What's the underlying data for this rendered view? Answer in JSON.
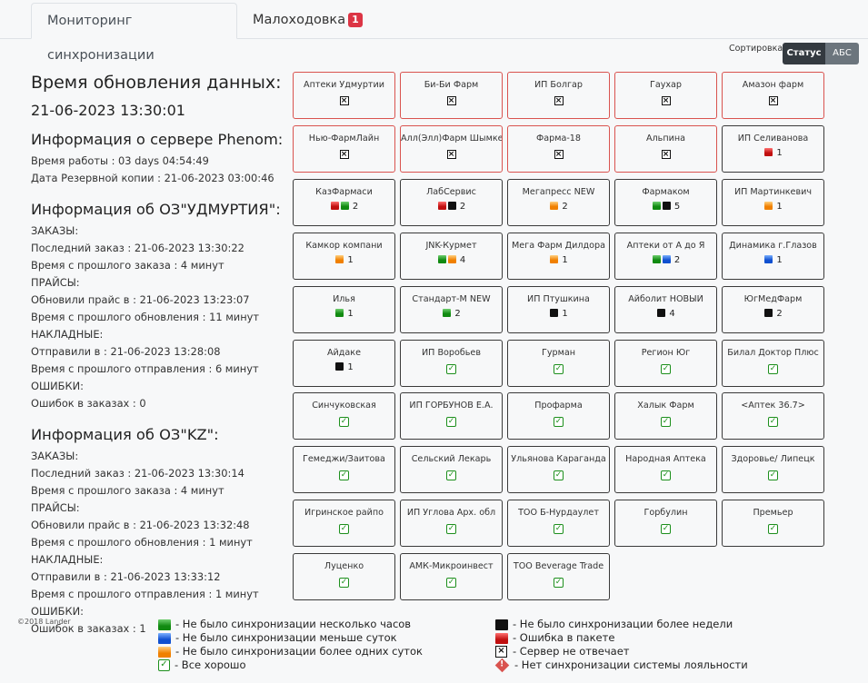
{
  "tabs": [
    {
      "label": "Мониторинг синхронизации",
      "active": true
    },
    {
      "label": "Малоходовка",
      "badge": "1"
    }
  ],
  "sort": {
    "label": "Сортировка:",
    "options": [
      "Статус",
      "АБС"
    ],
    "selected": "Статус"
  },
  "info": {
    "update_title": "Время обновления данных:",
    "update_time": "21-06-2023 13:30:01",
    "server": {
      "title": "Информация о сервере Phenom:",
      "uptime": "Время работы : 03 days 04:54:49",
      "backup": "Дата Резервной копии : 21-06-2023 03:00:46"
    },
    "oz1": {
      "title": "Информация об ОЗ\"УДМУРТИЯ\":",
      "lines": [
        "ЗАКАЗЫ:",
        "Последний заказ : 21-06-2023 13:30:22",
        "Время с прошлого заказа : 4 минут",
        "ПРАЙСЫ:",
        "Обновили прайс в : 21-06-2023 13:23:07",
        "Время с прошлого обновления : 11 минут",
        "НАКЛАДНЫЕ:",
        "Отправили в : 21-06-2023 13:28:08",
        "Время с прошлого отправления : 6 минут",
        "ОШИБКИ:",
        "Ошибок в заказах : 0"
      ]
    },
    "oz2": {
      "title": "Информация об ОЗ\"KZ\":",
      "lines": [
        "ЗАКАЗЫ:",
        "Последний заказ : 21-06-2023 13:30:14",
        "Время с прошлого заказа : 4 минут",
        "ПРАЙСЫ:",
        "Обновили прайс в : 21-06-2023 13:32:48",
        "Время с прошлого обновления : 1 минут",
        "НАКЛАДНЫЕ:",
        "Отправили в : 21-06-2023 13:33:12",
        "Время с прошлого отправления : 1 минут",
        "ОШИБКИ:",
        "Ошибок в заказах : 1"
      ]
    }
  },
  "cards": [
    {
      "name": "Аптеки Удмуртии",
      "status": "x",
      "border": "red"
    },
    {
      "name": "Би-Би Фарм",
      "status": "x",
      "border": "red"
    },
    {
      "name": "ИП Болгар",
      "status": "x",
      "border": "red"
    },
    {
      "name": "Гаухар",
      "status": "x",
      "border": "red"
    },
    {
      "name": "Амазон фарм",
      "status": "x",
      "border": "red"
    },
    {
      "name": "Нью-ФармЛайн",
      "status": "x",
      "border": "red"
    },
    {
      "name": "Алл(Элл)Фарм Шымкент",
      "status": "x",
      "border": "red"
    },
    {
      "name": "Фарма-18",
      "status": "x",
      "border": "red"
    },
    {
      "name": "Альпина",
      "status": "x",
      "border": "red"
    },
    {
      "name": "ИП Селиванова",
      "status": "marks",
      "marks": [
        "red"
      ],
      "count": "1"
    },
    {
      "name": "КазФармаси",
      "status": "marks",
      "marks": [
        "red",
        "green"
      ],
      "count": "2"
    },
    {
      "name": "ЛабСервис",
      "status": "marks",
      "marks": [
        "red",
        "black"
      ],
      "count": "2"
    },
    {
      "name": "Мегапресс NEW",
      "status": "marks",
      "marks": [
        "orange"
      ],
      "count": "2"
    },
    {
      "name": "Фармаком",
      "status": "marks",
      "marks": [
        "green",
        "black"
      ],
      "count": "5"
    },
    {
      "name": "ИП Мартинкевич",
      "status": "marks",
      "marks": [
        "orange"
      ],
      "count": "1"
    },
    {
      "name": "Камкор компани",
      "status": "marks",
      "marks": [
        "orange"
      ],
      "count": "1"
    },
    {
      "name": "JNK-Курмет",
      "status": "marks",
      "marks": [
        "green",
        "orange"
      ],
      "count": "4"
    },
    {
      "name": "Мега Фарм Дилдора",
      "status": "marks",
      "marks": [
        "orange"
      ],
      "count": "1"
    },
    {
      "name": "Аптеки от А до Я",
      "status": "marks",
      "marks": [
        "green",
        "blue"
      ],
      "count": "2"
    },
    {
      "name": "Динамика г.Глазов",
      "status": "marks",
      "marks": [
        "blue"
      ],
      "count": "1"
    },
    {
      "name": "Илья",
      "status": "marks",
      "marks": [
        "green"
      ],
      "count": "1"
    },
    {
      "name": "Стандарт-М NEW",
      "status": "marks",
      "marks": [
        "green"
      ],
      "count": "2"
    },
    {
      "name": "ИП Птушкина",
      "status": "marks",
      "marks": [
        "black"
      ],
      "count": "1"
    },
    {
      "name": "Айболит НОВЫЙ",
      "status": "marks",
      "marks": [
        "black"
      ],
      "count": "4"
    },
    {
      "name": "ЮгМедФарм",
      "status": "marks",
      "marks": [
        "black"
      ],
      "count": "2"
    },
    {
      "name": "Айдаке",
      "status": "marks",
      "marks": [
        "black"
      ],
      "count": "1"
    },
    {
      "name": "ИП Воробьев",
      "status": "ok"
    },
    {
      "name": "Гурман",
      "status": "ok"
    },
    {
      "name": "Регион Юг",
      "status": "ok"
    },
    {
      "name": "Билал Доктор Плюс",
      "status": "ok"
    },
    {
      "name": "Синчуковская",
      "status": "ok"
    },
    {
      "name": "ИП ГОРБУНОВ Е.А.",
      "status": "ok"
    },
    {
      "name": "Профарма",
      "status": "ok"
    },
    {
      "name": "Халык Фарм",
      "status": "ok"
    },
    {
      "name": "<Аптек 36.7>",
      "status": "ok"
    },
    {
      "name": "Гемеджи/Заитова",
      "status": "ok"
    },
    {
      "name": "Сельский Лекарь",
      "status": "ok"
    },
    {
      "name": "Ульянова Караганда",
      "status": "ok"
    },
    {
      "name": "Народная Аптека",
      "status": "ok"
    },
    {
      "name": "Здоровье/ Липецк",
      "status": "ok"
    },
    {
      "name": "Игринское райпо",
      "status": "ok"
    },
    {
      "name": "ИП Углова Арх. обл",
      "status": "ok"
    },
    {
      "name": "ТОО Б-Нурдаулет",
      "status": "ok"
    },
    {
      "name": "Горбулин",
      "status": "ok"
    },
    {
      "name": "Премьер",
      "status": "ok"
    },
    {
      "name": "Луценко",
      "status": "ok"
    },
    {
      "name": "АМК-Микроинвест",
      "status": "ok"
    },
    {
      "name": "ТОО Beverage Trade",
      "status": "ok"
    }
  ],
  "footer": {
    "copyright": "©2018 Lander"
  },
  "legend": {
    "col1": [
      {
        "icon": "green",
        "text": "- Не было синхронизации несколько часов"
      },
      {
        "icon": "blue",
        "text": "- Не было синхронизации меньше суток"
      },
      {
        "icon": "orange",
        "text": "- Не было синхронизации более одних суток"
      },
      {
        "icon": "ok",
        "text": "- Все хорошо"
      }
    ],
    "col2": [
      {
        "icon": "black",
        "text": "- Не было синхронизации более недели"
      },
      {
        "icon": "red",
        "text": "- Ошибка в пакете"
      },
      {
        "icon": "x",
        "text": "- Сервер не отвечает"
      },
      {
        "icon": "diamond",
        "text": "- Нет синхронизации системы лояльности"
      }
    ]
  }
}
